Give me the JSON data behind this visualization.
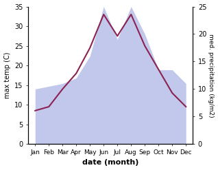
{
  "months": [
    "Jan",
    "Feb",
    "Mar",
    "Apr",
    "May",
    "Jun",
    "Jul",
    "Aug",
    "Sep",
    "Oct",
    "Nov",
    "Dec"
  ],
  "temp": [
    8.5,
    9.5,
    14.0,
    18.0,
    24.5,
    33.0,
    27.5,
    33.0,
    25.0,
    19.0,
    13.0,
    9.5
  ],
  "precip": [
    10.0,
    10.5,
    11.0,
    12.0,
    16.0,
    25.0,
    19.0,
    25.0,
    20.0,
    13.5,
    13.5,
    11.0
  ],
  "temp_color": "#8B2252",
  "precip_fill_color": "#b8bfe8",
  "ylim_temp": [
    0,
    35
  ],
  "ylim_precip": [
    0,
    25
  ],
  "ylabel_left": "max temp (C)",
  "ylabel_right": "med. precipitation (kg/m2)",
  "xlabel": "date (month)",
  "bg_color": "#ffffff",
  "temp_yticks": [
    0,
    5,
    10,
    15,
    20,
    25,
    30,
    35
  ],
  "precip_yticks": [
    0,
    5,
    10,
    15,
    20,
    25
  ]
}
